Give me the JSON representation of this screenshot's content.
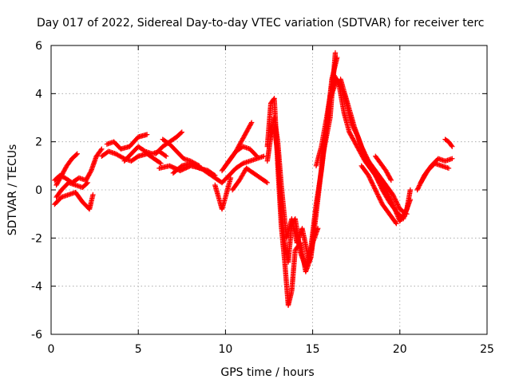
{
  "chart_data": {
    "type": "scatter",
    "title": "Day 017 of 2022, Sidereal Day-to-day VTEC variation (SDTVAR) for receiver terc",
    "xlabel": "GPS time / hours",
    "ylabel": "SDTVAR / TECUs",
    "xlim": [
      0,
      25
    ],
    "ylim": [
      -6,
      6
    ],
    "grid": true,
    "legend": "none",
    "marker": "+",
    "color": "#ff0000",
    "x_ticks": [
      {
        "value": 0,
        "label": "0"
      },
      {
        "value": 5,
        "label": "5"
      },
      {
        "value": 10,
        "label": "10"
      },
      {
        "value": 15,
        "label": "15"
      },
      {
        "value": 20,
        "label": "20"
      },
      {
        "value": 25,
        "label": "25"
      }
    ],
    "y_ticks": [
      {
        "value": -6,
        "label": "-6"
      },
      {
        "value": -4,
        "label": "-4"
      },
      {
        "value": -2,
        "label": "-2"
      },
      {
        "value": 0,
        "label": "0"
      },
      {
        "value": 2,
        "label": "2"
      },
      {
        "value": 4,
        "label": "4"
      },
      {
        "value": 6,
        "label": "6"
      }
    ],
    "series": [
      {
        "name": "s1",
        "x": [
          0.2,
          0.6,
          1.0,
          1.4,
          1.8,
          2.2,
          2.4
        ],
        "y": [
          -0.6,
          -0.3,
          -0.2,
          -0.1,
          -0.5,
          -0.8,
          -0.2
        ]
      },
      {
        "name": "s2",
        "x": [
          0.2,
          0.5,
          0.8,
          1.2,
          1.6,
          2.0,
          2.3,
          2.6,
          2.9
        ],
        "y": [
          0.4,
          0.6,
          0.5,
          0.3,
          0.5,
          0.4,
          0.8,
          1.4,
          1.7
        ]
      },
      {
        "name": "s3",
        "x": [
          0.3,
          0.6,
          0.9,
          1.2,
          1.5
        ],
        "y": [
          0.2,
          0.6,
          1.0,
          1.3,
          1.5
        ]
      },
      {
        "name": "s4",
        "x": [
          0.3,
          0.6,
          1.0,
          1.4,
          1.8,
          2.1
        ],
        "y": [
          -0.3,
          0.0,
          0.3,
          0.2,
          0.1,
          0.3
        ]
      },
      {
        "name": "s5",
        "x": [
          2.9,
          3.3,
          3.7,
          4.2,
          4.6,
          5.0,
          5.5,
          5.9,
          6.3
        ],
        "y": [
          1.4,
          1.6,
          1.5,
          1.3,
          1.2,
          1.4,
          1.5,
          1.3,
          1.1
        ]
      },
      {
        "name": "s6",
        "x": [
          3.2,
          3.6,
          4.0,
          4.5,
          5.0,
          5.5
        ],
        "y": [
          1.9,
          2.0,
          1.7,
          1.8,
          2.2,
          2.3
        ]
      },
      {
        "name": "s7",
        "x": [
          4.2,
          4.6,
          5.0,
          5.4,
          5.8,
          6.2,
          6.6
        ],
        "y": [
          1.2,
          1.5,
          1.8,
          1.6,
          1.5,
          1.6,
          1.4
        ]
      },
      {
        "name": "s8",
        "x": [
          6.0,
          6.4,
          6.8,
          7.2,
          7.5
        ],
        "y": [
          1.5,
          1.8,
          2.0,
          2.2,
          2.4
        ]
      },
      {
        "name": "s9",
        "x": [
          6.4,
          6.8,
          7.2,
          7.6,
          8.0,
          8.5
        ],
        "y": [
          2.1,
          1.9,
          1.6,
          1.3,
          1.2,
          1.0
        ]
      },
      {
        "name": "s10",
        "x": [
          6.2,
          6.8,
          7.4,
          8.0,
          8.6,
          9.0,
          9.4,
          9.8
        ],
        "y": [
          0.9,
          1.0,
          0.8,
          1.0,
          0.9,
          0.7,
          0.5,
          0.3
        ]
      },
      {
        "name": "s11",
        "x": [
          7.0,
          7.5,
          8.0,
          8.5,
          9.0,
          9.4
        ],
        "y": [
          0.7,
          1.0,
          1.1,
          0.9,
          0.8,
          0.6
        ]
      },
      {
        "name": "s12",
        "x": [
          9.4,
          9.6,
          9.8,
          10.0,
          10.3
        ],
        "y": [
          0.2,
          -0.3,
          -0.8,
          -0.3,
          0.5
        ]
      },
      {
        "name": "s13",
        "x": [
          9.8,
          10.2,
          10.6,
          11.0,
          11.4,
          11.8
        ],
        "y": [
          0.8,
          1.2,
          1.6,
          1.8,
          1.7,
          1.4
        ]
      },
      {
        "name": "s14",
        "x": [
          10.0,
          10.3,
          10.6,
          10.9,
          11.2,
          11.5
        ],
        "y": [
          1.0,
          1.3,
          1.6,
          2.0,
          2.4,
          2.8
        ]
      },
      {
        "name": "s15",
        "x": [
          9.8,
          10.2,
          10.6,
          11.0,
          11.4,
          11.8,
          12.2
        ],
        "y": [
          0.3,
          0.6,
          0.9,
          1.1,
          1.2,
          1.3,
          1.4
        ]
      },
      {
        "name": "s16",
        "x": [
          10.4,
          10.8,
          11.2,
          11.6,
          12.0,
          12.4
        ],
        "y": [
          0.0,
          0.4,
          0.9,
          0.7,
          0.5,
          0.3
        ]
      },
      {
        "name": "s17",
        "x": [
          12.4,
          12.6,
          12.8,
          13.0,
          13.2,
          13.4,
          13.6,
          13.8,
          14.0,
          14.3,
          14.6,
          14.9,
          15.2,
          15.6,
          16.0,
          16.3
        ],
        "y": [
          1.8,
          3.6,
          3.8,
          1.0,
          -1.5,
          -3.0,
          -4.8,
          -4.2,
          -2.5,
          -2.2,
          -3.4,
          -2.8,
          -1.0,
          1.5,
          3.0,
          5.7
        ]
      },
      {
        "name": "s18",
        "x": [
          12.4,
          12.6,
          12.8,
          13.0,
          13.2,
          13.4,
          13.6,
          13.8,
          14.0,
          14.3,
          14.6,
          14.9,
          15.2,
          15.5,
          15.8,
          16.1,
          16.4
        ],
        "y": [
          1.2,
          2.2,
          2.6,
          1.5,
          -0.8,
          -2.2,
          -3.0,
          -1.4,
          -1.2,
          -2.6,
          -3.2,
          -2.4,
          -0.6,
          0.8,
          2.6,
          4.6,
          5.5
        ]
      },
      {
        "name": "s19",
        "x": [
          12.6,
          12.8,
          13.0,
          13.2,
          13.5,
          13.8,
          14.1,
          14.4,
          14.8,
          15.0,
          15.3
        ],
        "y": [
          2.4,
          3.0,
          2.0,
          0.2,
          -2.0,
          -1.2,
          -2.2,
          -1.6,
          -3.0,
          -2.2,
          -1.6
        ]
      },
      {
        "name": "s20",
        "x": [
          15.2,
          15.5,
          15.8,
          16.2,
          16.5,
          16.8,
          17.1,
          17.4,
          17.7,
          18.0,
          18.4,
          18.8,
          19.2,
          19.6,
          20.0,
          20.4,
          20.6
        ],
        "y": [
          1.0,
          1.8,
          3.0,
          4.8,
          4.4,
          3.2,
          2.4,
          2.0,
          1.6,
          1.2,
          0.8,
          0.4,
          0.0,
          -0.6,
          -1.3,
          -0.8,
          0.0
        ]
      },
      {
        "name": "s21",
        "x": [
          16.0,
          16.4,
          16.8,
          17.2,
          17.6,
          18.0,
          18.4,
          18.8,
          19.2,
          19.6,
          20.0,
          20.4
        ],
        "y": [
          3.8,
          4.6,
          4.0,
          2.8,
          2.2,
          1.4,
          1.0,
          0.6,
          0.2,
          -0.2,
          -0.8,
          -1.0
        ]
      },
      {
        "name": "s22",
        "x": [
          16.6,
          17.0,
          17.4,
          17.8,
          18.2,
          18.6,
          19.0,
          19.4,
          19.8,
          20.2,
          20.6
        ],
        "y": [
          4.6,
          3.6,
          2.6,
          1.8,
          1.2,
          0.6,
          0.0,
          -0.5,
          -0.9,
          -1.2,
          -0.4
        ]
      },
      {
        "name": "s23",
        "x": [
          17.8,
          18.2,
          18.6,
          19.0,
          19.4,
          19.8
        ],
        "y": [
          1.0,
          0.6,
          0.0,
          -0.6,
          -1.0,
          -1.4
        ]
      },
      {
        "name": "s24",
        "x": [
          18.6,
          18.9,
          19.2,
          19.5
        ],
        "y": [
          1.4,
          1.1,
          0.8,
          0.4
        ]
      },
      {
        "name": "s25",
        "x": [
          21.0,
          21.4,
          21.8,
          22.2,
          22.6,
          23.0
        ],
        "y": [
          0.0,
          0.6,
          1.0,
          1.3,
          1.2,
          1.3
        ]
      },
      {
        "name": "s26",
        "x": [
          21.2,
          21.6,
          22.0,
          22.4,
          22.8
        ],
        "y": [
          0.3,
          0.8,
          1.1,
          1.0,
          0.9
        ]
      },
      {
        "name": "s27",
        "x": [
          22.6,
          22.8,
          23.0
        ],
        "y": [
          2.1,
          2.0,
          1.8
        ]
      }
    ]
  }
}
